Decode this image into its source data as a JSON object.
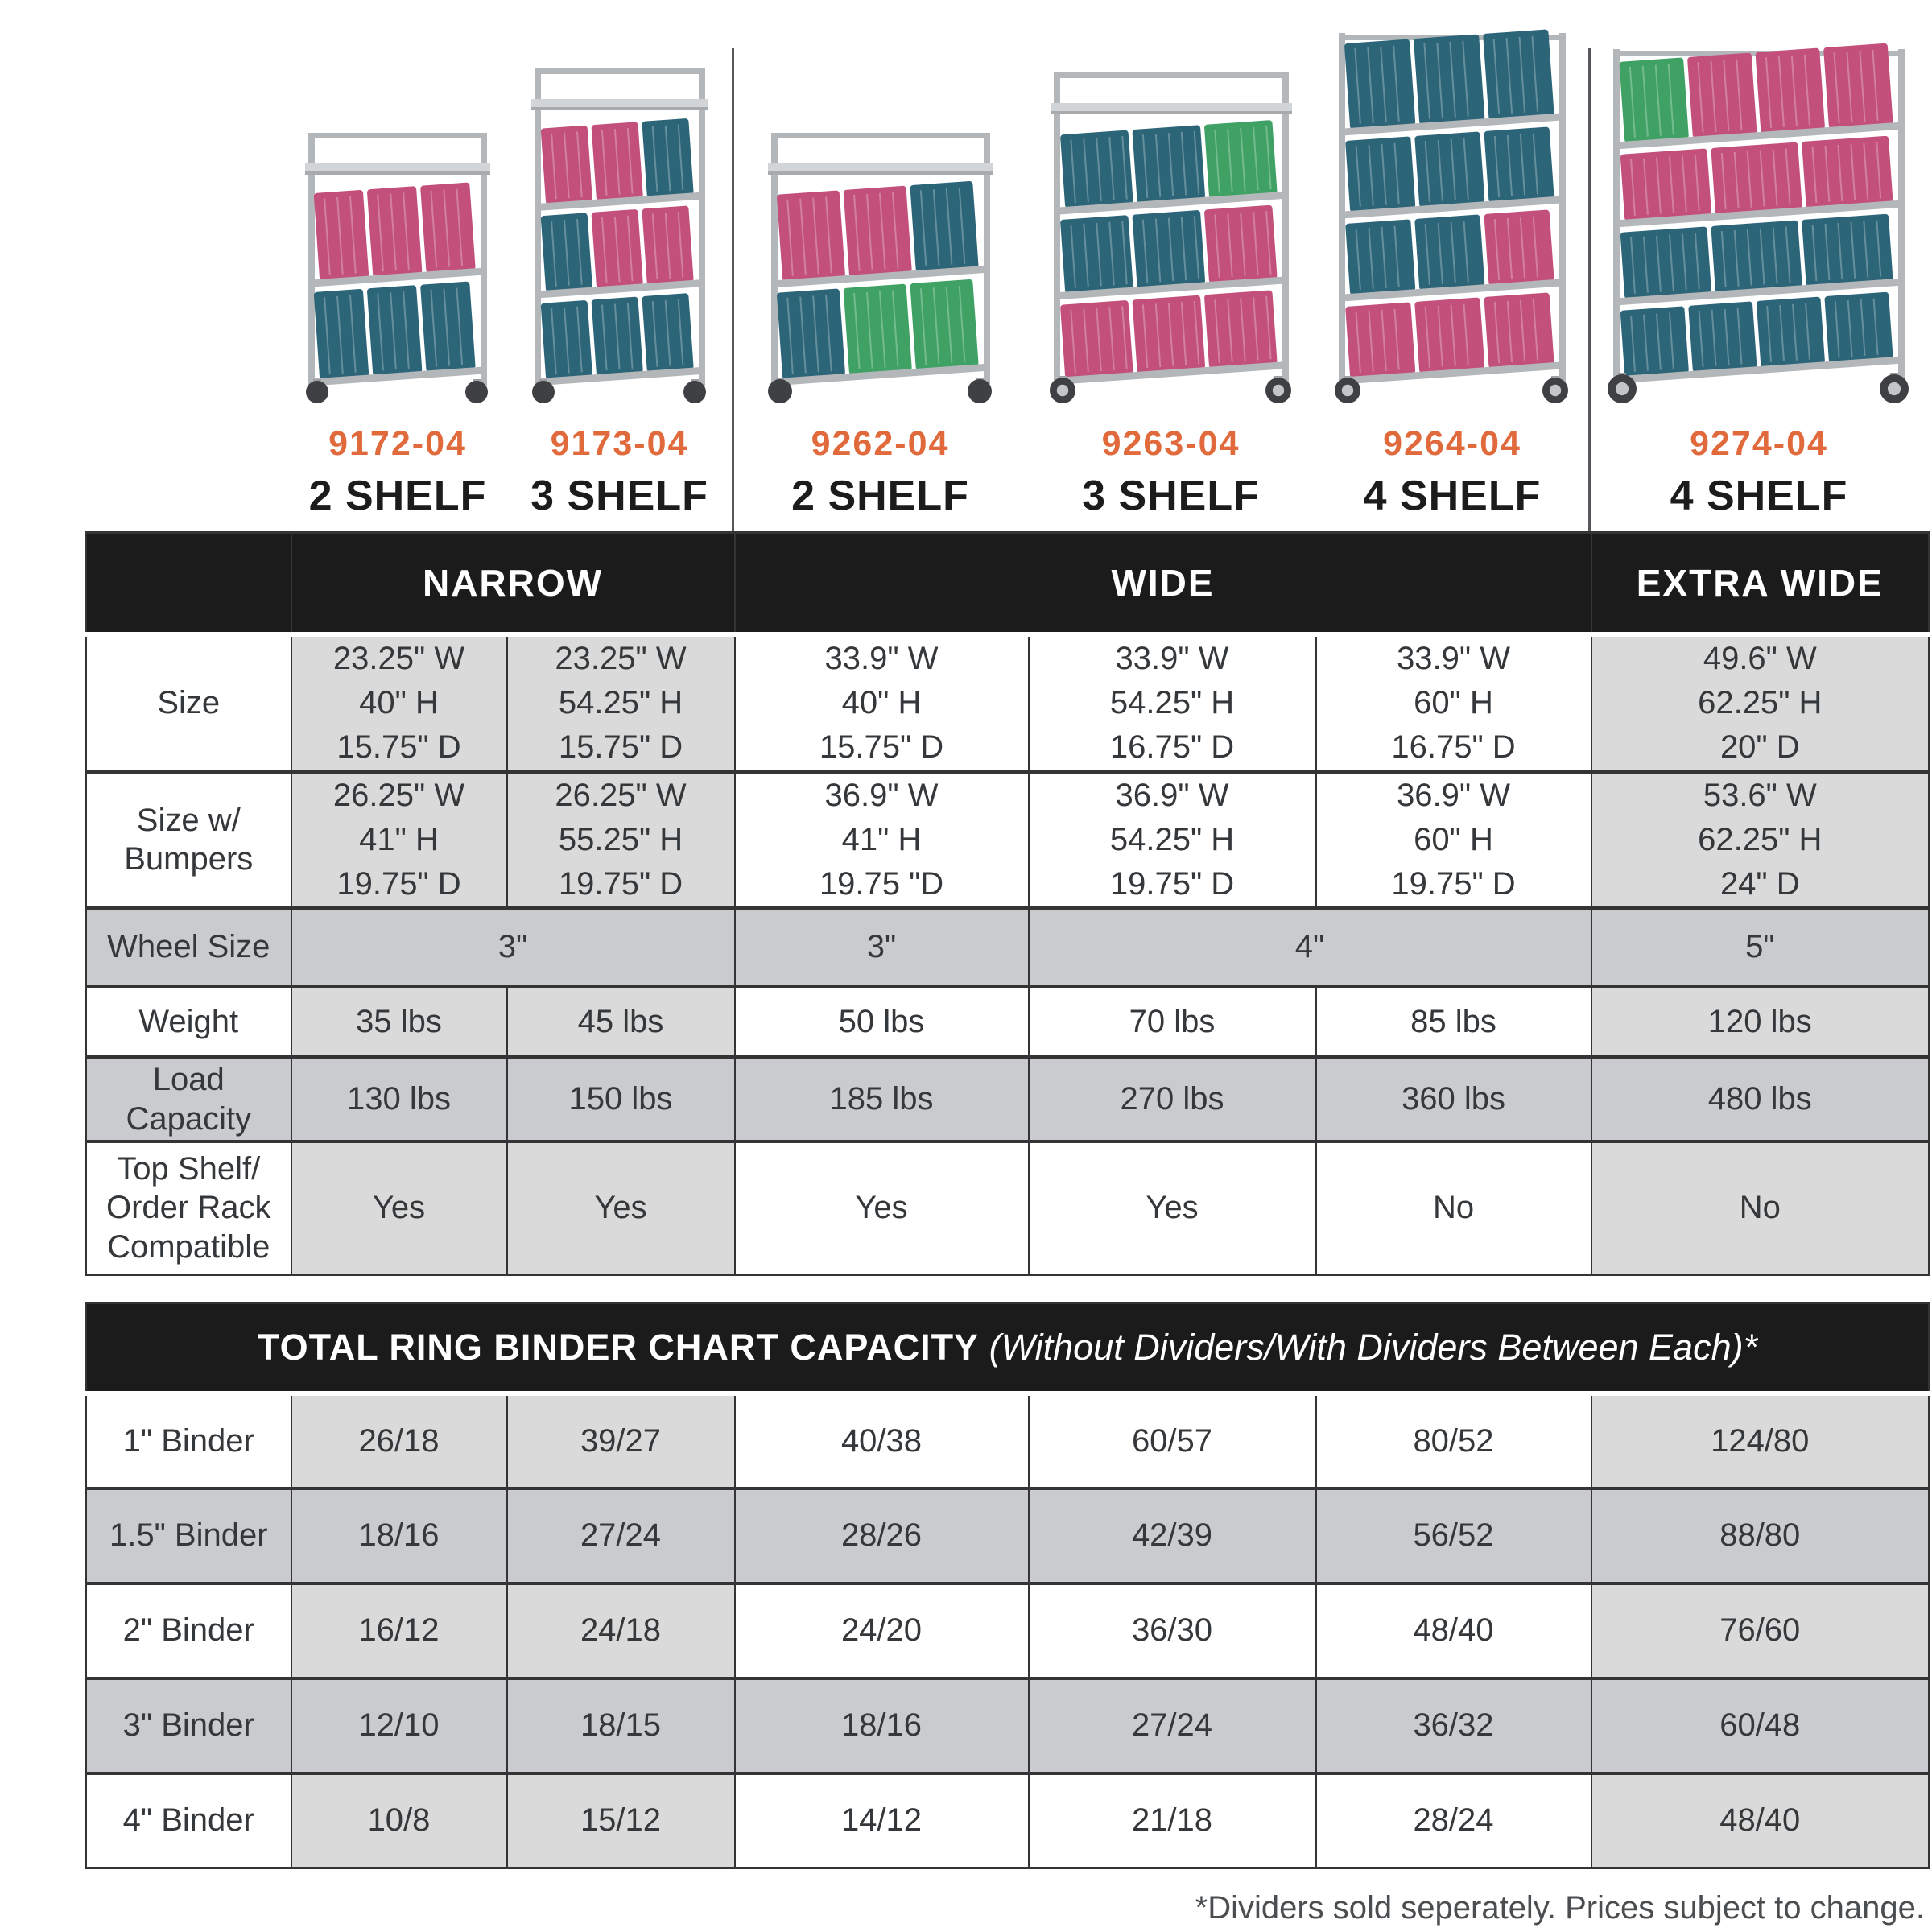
{
  "products": [
    {
      "model": "9172-04",
      "shelf_label": "2 SHELF"
    },
    {
      "model": "9173-04",
      "shelf_label": "3 SHELF"
    },
    {
      "model": "9262-04",
      "shelf_label": "2 SHELF"
    },
    {
      "model": "9263-04",
      "shelf_label": "3 SHELF"
    },
    {
      "model": "9264-04",
      "shelf_label": "4 SHELF"
    },
    {
      "model": "9274-04",
      "shelf_label": "4 SHELF"
    }
  ],
  "spec_table": {
    "group_headers": [
      {
        "label": "NARROW",
        "span": 2
      },
      {
        "label": "WIDE",
        "span": 3
      },
      {
        "label": "EXTRA WIDE",
        "span": 1
      }
    ],
    "rows": [
      {
        "label": "Size",
        "style": "banded",
        "cells": [
          "23.25\" W\n40\" H\n15.75\" D",
          "23.25\" W\n54.25\" H\n15.75\" D",
          "33.9\" W\n40\" H\n15.75\" D",
          "33.9\" W\n54.25\" H\n16.75\" D",
          "33.9\" W\n60\" H\n16.75\" D",
          "49.6\" W\n62.25\" H\n20\" D"
        ]
      },
      {
        "label": "Size w/\nBumpers",
        "style": "banded",
        "cells": [
          "26.25\" W\n41\" H\n19.75\" D",
          "26.25\" W\n55.25\" H\n19.75\" D",
          "36.9\" W\n41\" H\n19.75 \"D",
          "36.9\" W\n54.25\" H\n19.75\" D",
          "36.9\" W\n60\" H\n19.75\" D",
          "53.6\" W\n62.25\" H\n24\" D"
        ]
      },
      {
        "label": "Wheel Size",
        "style": "gray",
        "cells": [
          {
            "text": "3\"",
            "span": 2
          },
          {
            "text": "3\"",
            "span": 1
          },
          {
            "text": "4\"",
            "span": 2
          },
          {
            "text": "5\"",
            "span": 1
          }
        ]
      },
      {
        "label": "Weight",
        "style": "banded",
        "cells": [
          "35 lbs",
          "45 lbs",
          "50 lbs",
          "70 lbs",
          "85 lbs",
          "120 lbs"
        ]
      },
      {
        "label": "Load\nCapacity",
        "style": "gray",
        "cells": [
          "130 lbs",
          "150 lbs",
          "185 lbs",
          "270 lbs",
          "360 lbs",
          "480 lbs"
        ]
      },
      {
        "label": "Top Shelf/\nOrder Rack\nCompatible",
        "style": "banded",
        "cells": [
          "Yes",
          "Yes",
          "Yes",
          "Yes",
          "No",
          "No"
        ]
      }
    ]
  },
  "binder_table": {
    "title_bold": "TOTAL RING BINDER CHART CAPACITY",
    "title_italic": " (Without Dividers/With Dividers Between Each)*",
    "rows": [
      {
        "label": "1\" Binder",
        "style": "banded",
        "cells": [
          "26/18",
          "39/27",
          "40/38",
          "60/57",
          "80/52",
          "124/80"
        ]
      },
      {
        "label": "1.5\" Binder",
        "style": "gray",
        "cells": [
          "18/16",
          "27/24",
          "28/26",
          "42/39",
          "56/52",
          "88/80"
        ]
      },
      {
        "label": "2\" Binder",
        "style": "banded",
        "cells": [
          "16/12",
          "24/18",
          "24/20",
          "36/30",
          "48/40",
          "76/60"
        ]
      },
      {
        "label": "3\" Binder",
        "style": "gray",
        "cells": [
          "12/10",
          "18/15",
          "18/16",
          "27/24",
          "36/32",
          "60/48"
        ]
      },
      {
        "label": "4\" Binder",
        "style": "banded",
        "cells": [
          "10/8",
          "15/12",
          "14/12",
          "21/18",
          "28/24",
          "48/40"
        ]
      }
    ]
  },
  "footer_note": "*Dividers sold seperately. Prices subject to change.",
  "colors": {
    "accent_orange": "#E06A3C",
    "header_black": "#1B1B1B",
    "cell_gray_light": "#DADADA",
    "row_gray": "#C9CBCE",
    "binder_pink": "#C2507A",
    "binder_teal": "#2C6478",
    "binder_green": "#3FA163",
    "frame_gray": "#B4B7BA"
  }
}
